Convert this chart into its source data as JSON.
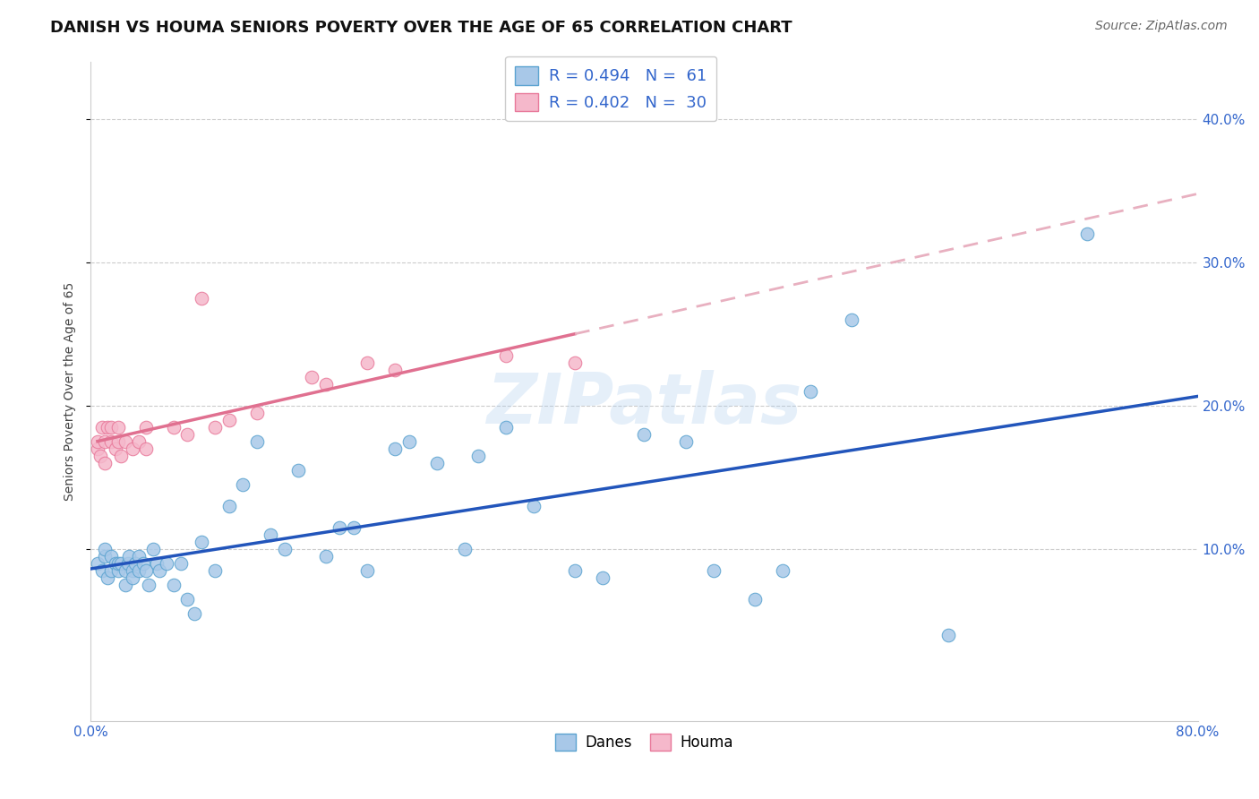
{
  "title": "DANISH VS HOUMA SENIORS POVERTY OVER THE AGE OF 65 CORRELATION CHART",
  "source": "Source: ZipAtlas.com",
  "ylabel": "Seniors Poverty Over the Age of 65",
  "xlim": [
    0,
    0.8
  ],
  "ylim": [
    -0.02,
    0.44
  ],
  "xtick_positions": [
    0.0,
    0.1,
    0.2,
    0.3,
    0.4,
    0.5,
    0.6,
    0.7,
    0.8
  ],
  "xticklabels": [
    "0.0%",
    "",
    "",
    "",
    "",
    "",
    "",
    "",
    "80.0%"
  ],
  "ytick_positions": [
    0.1,
    0.2,
    0.3,
    0.4
  ],
  "ytick_labels": [
    "10.0%",
    "20.0%",
    "30.0%",
    "40.0%"
  ],
  "legend_danes": "R = 0.494   N =  61",
  "legend_houma": "R = 0.402   N =  30",
  "danes_color": "#a8c8e8",
  "danes_edge_color": "#5ba3d0",
  "houma_color": "#f5b8cb",
  "houma_edge_color": "#e8799a",
  "danes_line_color": "#2255bb",
  "houma_line_color": "#e07090",
  "houma_line_dash_color": "#e8b0c0",
  "watermark": "ZIPatlas",
  "danes_x": [
    0.005,
    0.008,
    0.01,
    0.01,
    0.012,
    0.015,
    0.015,
    0.018,
    0.02,
    0.02,
    0.022,
    0.025,
    0.025,
    0.027,
    0.028,
    0.03,
    0.03,
    0.032,
    0.035,
    0.035,
    0.038,
    0.04,
    0.042,
    0.045,
    0.048,
    0.05,
    0.055,
    0.06,
    0.065,
    0.07,
    0.075,
    0.08,
    0.09,
    0.1,
    0.11,
    0.12,
    0.13,
    0.14,
    0.15,
    0.17,
    0.18,
    0.19,
    0.2,
    0.22,
    0.23,
    0.25,
    0.27,
    0.28,
    0.3,
    0.32,
    0.35,
    0.37,
    0.4,
    0.43,
    0.45,
    0.48,
    0.5,
    0.52,
    0.55,
    0.62,
    0.72
  ],
  "danes_y": [
    0.09,
    0.085,
    0.095,
    0.1,
    0.08,
    0.095,
    0.085,
    0.09,
    0.085,
    0.09,
    0.09,
    0.085,
    0.075,
    0.09,
    0.095,
    0.085,
    0.08,
    0.09,
    0.085,
    0.095,
    0.09,
    0.085,
    0.075,
    0.1,
    0.09,
    0.085,
    0.09,
    0.075,
    0.09,
    0.065,
    0.055,
    0.105,
    0.085,
    0.13,
    0.145,
    0.175,
    0.11,
    0.1,
    0.155,
    0.095,
    0.115,
    0.115,
    0.085,
    0.17,
    0.175,
    0.16,
    0.1,
    0.165,
    0.185,
    0.13,
    0.085,
    0.08,
    0.18,
    0.175,
    0.085,
    0.065,
    0.085,
    0.21,
    0.26,
    0.04,
    0.32
  ],
  "houma_x": [
    0.005,
    0.005,
    0.007,
    0.008,
    0.01,
    0.01,
    0.012,
    0.015,
    0.015,
    0.018,
    0.02,
    0.02,
    0.022,
    0.025,
    0.03,
    0.035,
    0.04,
    0.04,
    0.06,
    0.07,
    0.08,
    0.09,
    0.1,
    0.12,
    0.16,
    0.17,
    0.2,
    0.22,
    0.3,
    0.35
  ],
  "houma_y": [
    0.17,
    0.175,
    0.165,
    0.185,
    0.16,
    0.175,
    0.185,
    0.175,
    0.185,
    0.17,
    0.175,
    0.185,
    0.165,
    0.175,
    0.17,
    0.175,
    0.17,
    0.185,
    0.185,
    0.18,
    0.275,
    0.185,
    0.19,
    0.195,
    0.22,
    0.215,
    0.23,
    0.225,
    0.235,
    0.23
  ],
  "marker_size": 110,
  "background_color": "#ffffff",
  "grid_color": "#cccccc",
  "title_fontsize": 13,
  "axis_fontsize": 11,
  "legend_fontsize": 13
}
